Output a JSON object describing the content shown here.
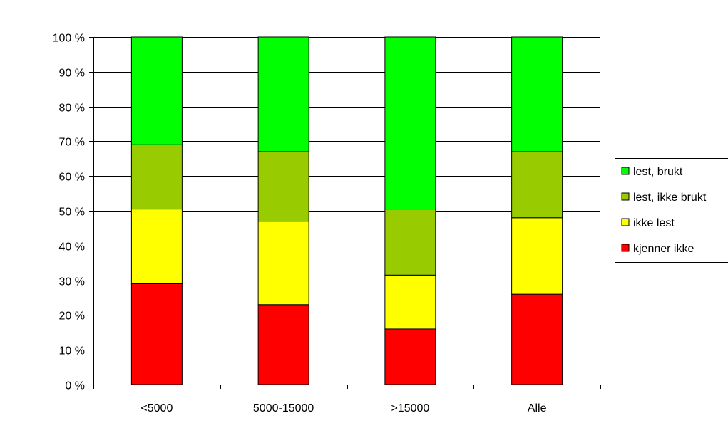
{
  "chart_data": {
    "type": "bar",
    "stacked": true,
    "normalized": true,
    "categories": [
      "<5000",
      "5000-15000",
      ">15000",
      "Alle"
    ],
    "series": [
      {
        "name": "kjenner ikke",
        "color": "#ff0000",
        "values": [
          29,
          23,
          16,
          26
        ]
      },
      {
        "name": "ikke lest",
        "color": "#ffff00",
        "values": [
          21.5,
          24,
          15.5,
          22
        ]
      },
      {
        "name": "lest, ikke brukt",
        "color": "#99cc00",
        "values": [
          18.5,
          20,
          19,
          19
        ]
      },
      {
        "name": "lest, brukt",
        "color": "#00ff00",
        "values": [
          31,
          33,
          49.5,
          33
        ]
      }
    ],
    "yticks": [
      "0 %",
      "10 %",
      "20 %",
      "30 %",
      "40 %",
      "50 %",
      "60 %",
      "70 %",
      "80 %",
      "90 %",
      "100 %"
    ],
    "ylim": [
      0,
      100
    ],
    "grid": true,
    "legend": "right",
    "title": "",
    "xlabel": "",
    "ylabel": ""
  }
}
